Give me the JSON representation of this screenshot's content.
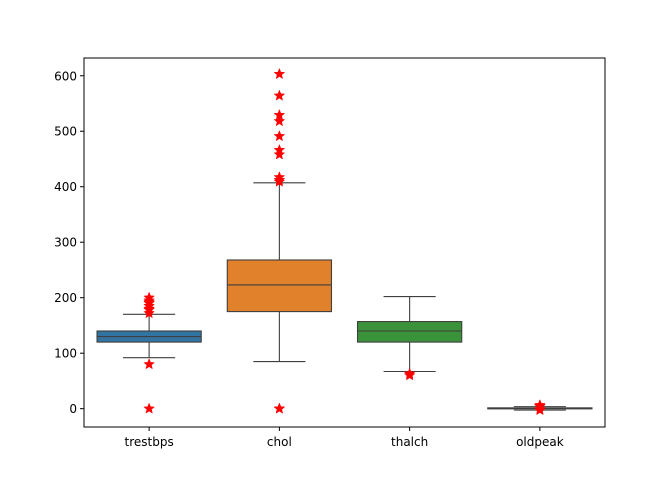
{
  "chart_data": {
    "type": "box",
    "categories": [
      "trestbps",
      "chol",
      "thalch",
      "oldpeak"
    ],
    "colors": [
      "#3274a1",
      "#e1812c",
      "#3a923a",
      "#c03d3e"
    ],
    "outlier_color": "#ff0000",
    "outlier_marker": "star",
    "ylim": [
      -33,
      632
    ],
    "yticks": [
      0,
      100,
      200,
      300,
      400,
      500,
      600
    ],
    "series": [
      {
        "category": "trestbps",
        "whisker_low": 92,
        "q1": 120,
        "median": 130,
        "q3": 140,
        "whisker_high": 170,
        "outliers": [
          0,
          80,
          172,
          178,
          180,
          185,
          190,
          192,
          195,
          200
        ]
      },
      {
        "category": "chol",
        "whisker_low": 85,
        "q1": 175,
        "median": 223,
        "q3": 268,
        "whisker_high": 407,
        "outliers": [
          0,
          0,
          409,
          412,
          417,
          458,
          466,
          491,
          518,
          529,
          564,
          603
        ]
      },
      {
        "category": "thalch",
        "whisker_low": 67,
        "q1": 120,
        "median": 140,
        "q3": 157,
        "whisker_high": 202,
        "outliers": [
          60,
          63
        ]
      },
      {
        "category": "oldpeak",
        "whisker_low": -2.6,
        "q1": 0,
        "median": 0.5,
        "q3": 1.5,
        "whisker_high": 3.7,
        "outliers": [
          -2.6,
          -1,
          4,
          5,
          5.6,
          6.2
        ]
      }
    ]
  }
}
